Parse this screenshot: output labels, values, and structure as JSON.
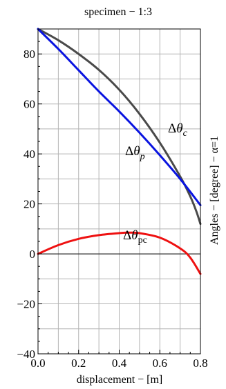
{
  "chart_data": {
    "type": "line",
    "title": "specimen − 1:3",
    "xlabel": "displacement − [m]",
    "ylabel": "Angles − [degree] − α=1",
    "xlim": [
      0,
      0.8
    ],
    "ylim": [
      -40,
      90
    ],
    "x_ticks": [
      0,
      0.2,
      0.4,
      0.6,
      0.8
    ],
    "x_tick_labels": [
      "0.0",
      "0.2",
      "0.4",
      "0.6",
      "0.8"
    ],
    "y_ticks": [
      -40,
      -20,
      0,
      20,
      40,
      60,
      80
    ],
    "y_tick_labels": [
      "−40",
      "−20",
      "0",
      "20",
      "40",
      "60",
      "80"
    ],
    "grid": true,
    "series": [
      {
        "id": "theta_c",
        "label": "Δθc",
        "color": "#4a4a4a",
        "x": [
          0,
          0.1,
          0.2,
          0.3,
          0.4,
          0.5,
          0.6,
          0.7,
          0.75,
          0.78,
          0.8
        ],
        "y": [
          90,
          85.5,
          80,
          73.6,
          65.7,
          56,
          44.5,
          31,
          23,
          17,
          12
        ]
      },
      {
        "id": "theta_p",
        "label": "Δθp",
        "color": "#0a14e0",
        "x": [
          0,
          0.1,
          0.2,
          0.3,
          0.4,
          0.5,
          0.6,
          0.7,
          0.8
        ],
        "y": [
          90,
          82,
          73.5,
          65,
          57,
          48.5,
          39.5,
          30,
          19.5
        ]
      },
      {
        "id": "theta_pc",
        "label": "Δθpc",
        "color": "#ee1111",
        "x": [
          0,
          0.1,
          0.2,
          0.3,
          0.4,
          0.45,
          0.5,
          0.6,
          0.7,
          0.75,
          0.8
        ],
        "y": [
          0,
          3.5,
          6,
          7.5,
          8.3,
          8.5,
          8.3,
          6.5,
          2.2,
          -1.5,
          -8
        ]
      }
    ]
  }
}
